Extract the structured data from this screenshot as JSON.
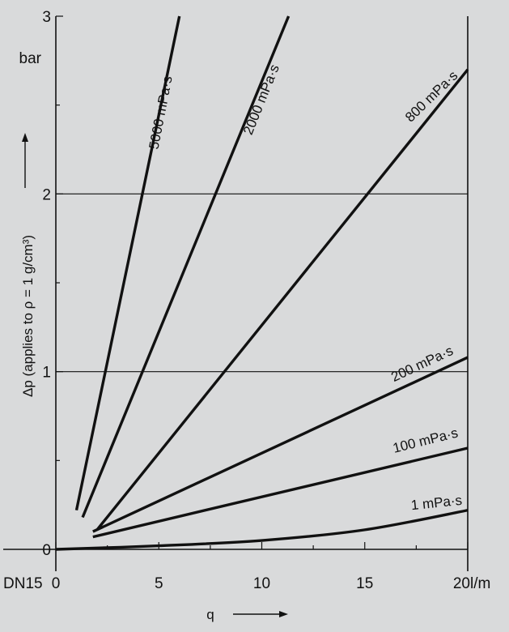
{
  "chart_data": {
    "type": "line",
    "xlabel": "q",
    "ylabel": "Δp (applies to ρ = 1 g/cm³)",
    "x_unit": "l/m",
    "y_unit": "bar",
    "corner_label": "DN15",
    "xlim": [
      0,
      20
    ],
    "ylim": [
      0,
      3
    ],
    "x_ticks": [
      0,
      5,
      10,
      15,
      20
    ],
    "y_ticks": [
      0,
      1,
      2,
      3
    ],
    "grid_y": [
      1,
      2
    ],
    "series": [
      {
        "name": "5000 mPa·s",
        "points": [
          [
            1.0,
            0.22
          ],
          [
            6.0,
            3.0
          ]
        ]
      },
      {
        "name": "2000 mPa·s",
        "points": [
          [
            1.3,
            0.18
          ],
          [
            11.3,
            3.0
          ]
        ]
      },
      {
        "name": "800 mPa·s",
        "points": [
          [
            2.0,
            0.11
          ],
          [
            20.0,
            2.7
          ]
        ]
      },
      {
        "name": "200 mPa·s",
        "points": [
          [
            1.8,
            0.1
          ],
          [
            20.0,
            1.08
          ]
        ]
      },
      {
        "name": "100 mPa·s",
        "points": [
          [
            1.8,
            0.07
          ],
          [
            20.0,
            0.57
          ]
        ]
      },
      {
        "name": "1 mPa·s",
        "points": [
          [
            0.0,
            0.0
          ],
          [
            5.0,
            0.02
          ],
          [
            10.0,
            0.05
          ],
          [
            15.0,
            0.11
          ],
          [
            20.0,
            0.22
          ]
        ]
      }
    ]
  }
}
